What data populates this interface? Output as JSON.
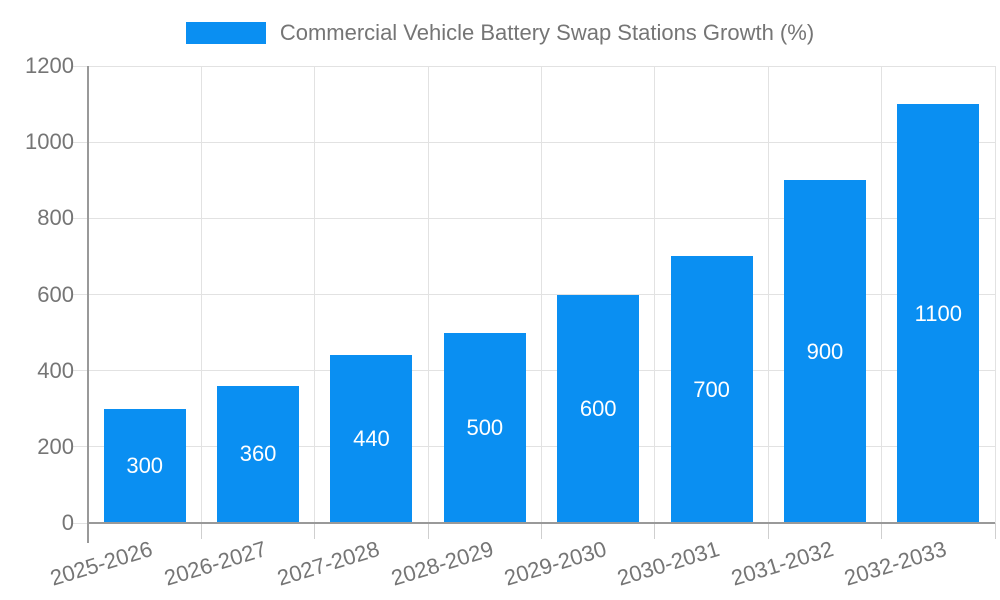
{
  "page": {
    "background": "#ffffff"
  },
  "legend": {
    "label": "Commercial Vehicle Battery Swap Stations Growth (%)"
  },
  "colors": {
    "bar": "#0a8ff2",
    "axis": "#999999",
    "grid": "#e2e2e2",
    "tick": "#cfcfcf",
    "label_text": "#757575",
    "bar_label": "#ffffff",
    "background": "#ffffff"
  },
  "chart_data": {
    "type": "bar",
    "title": "Commercial Vehicle Battery Swap Stations Growth (%)",
    "categories": [
      "2025-2026",
      "2026-2027",
      "2027-2028",
      "2028-2029",
      "2029-2030",
      "2030-2031",
      "2031-2032",
      "2032-2033"
    ],
    "values": [
      300,
      360,
      440,
      500,
      600,
      700,
      900,
      1100
    ],
    "series": [
      {
        "name": "Commercial Vehicle Battery Swap Stations Growth (%)",
        "values": [
          300,
          360,
          440,
          500,
          600,
          700,
          900,
          1100
        ]
      }
    ],
    "xlabel": "",
    "ylabel": "",
    "ylim": [
      0,
      1200
    ],
    "yticks": [
      0,
      200,
      400,
      600,
      800,
      1000,
      1200
    ],
    "grid": true,
    "legend_position": "top-center",
    "bar_value_labels_inside": true,
    "x_tick_rotation_deg": -17
  }
}
